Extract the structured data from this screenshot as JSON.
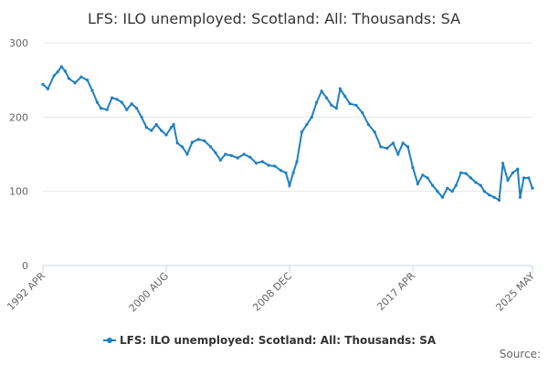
{
  "colors": {
    "series": "#1f7fc1",
    "grid": "#e6e6e6",
    "axis": "#ccd6eb"
  },
  "chart_data": {
    "type": "line",
    "title": "LFS: ILO unemployed: Scotland: All: Thousands: SA",
    "xlabel": "",
    "ylabel": "",
    "ylim": [
      0,
      300
    ],
    "yticks": [
      0,
      100,
      200,
      300
    ],
    "xlim": [
      "1992 APR",
      "2025 MAY"
    ],
    "xticks": [
      "1992 APR",
      "2000 AUG",
      "2008 DEC",
      "2017 APR",
      "2025 MAY"
    ],
    "grid": true,
    "legend": "bottom-center",
    "source_label": "Source:",
    "series": [
      {
        "name": "LFS: ILO unemployed: Scotland: All: Thousands: SA",
        "points": [
          [
            "1992 APR",
            244
          ],
          [
            "1992 AUG",
            238
          ],
          [
            "1993 JAN",
            256
          ],
          [
            "1993 APR",
            261
          ],
          [
            "1993 JUL",
            268
          ],
          [
            "1993 OCT",
            262
          ],
          [
            "1994 JAN",
            252
          ],
          [
            "1994 JUN",
            246
          ],
          [
            "1994 NOV",
            254
          ],
          [
            "1995 APR",
            250
          ],
          [
            "1995 AUG",
            236
          ],
          [
            "1995 DEC",
            220
          ],
          [
            "1996 MAR",
            212
          ],
          [
            "1996 AUG",
            210
          ],
          [
            "1996 DEC",
            226
          ],
          [
            "1997 APR",
            224
          ],
          [
            "1997 AUG",
            220
          ],
          [
            "1997 DEC",
            210
          ],
          [
            "1998 APR",
            218
          ],
          [
            "1998 AUG",
            212
          ],
          [
            "1998 DEC",
            200
          ],
          [
            "1999 APR",
            186
          ],
          [
            "1999 AUG",
            182
          ],
          [
            "1999 DEC",
            190
          ],
          [
            "2000 APR",
            182
          ],
          [
            "2000 AUG",
            176
          ],
          [
            "2000 DEC",
            186
          ],
          [
            "2001 FEB",
            190
          ],
          [
            "2001 MAY",
            165
          ],
          [
            "2001 SEP",
            160
          ],
          [
            "2002 JAN",
            150
          ],
          [
            "2002 MAY",
            166
          ],
          [
            "2002 OCT",
            170
          ],
          [
            "2003 MAR",
            168
          ],
          [
            "2003 AUG",
            160
          ],
          [
            "2003 DEC",
            152
          ],
          [
            "2004 APR",
            142
          ],
          [
            "2004 AUG",
            150
          ],
          [
            "2005 JAN",
            148
          ],
          [
            "2005 JUN",
            145
          ],
          [
            "2005 NOV",
            150
          ],
          [
            "2006 APR",
            146
          ],
          [
            "2006 SEP",
            138
          ],
          [
            "2007 FEB",
            140
          ],
          [
            "2007 JUL",
            135
          ],
          [
            "2007 DEC",
            134
          ],
          [
            "2008 MAY",
            128
          ],
          [
            "2008 SEP",
            125
          ],
          [
            "2008 DEC",
            108
          ],
          [
            "2009 MAR",
            125
          ],
          [
            "2009 JUN",
            140
          ],
          [
            "2009 OCT",
            180
          ],
          [
            "2010 FEB",
            190
          ],
          [
            "2010 JUN",
            200
          ],
          [
            "2010 OCT",
            220
          ],
          [
            "2011 FEB",
            235
          ],
          [
            "2011 JUN",
            226
          ],
          [
            "2011 OCT",
            216
          ],
          [
            "2012 FEB",
            212
          ],
          [
            "2012 MAY",
            238
          ],
          [
            "2012 SEP",
            228
          ],
          [
            "2013 JAN",
            218
          ],
          [
            "2013 JUN",
            216
          ],
          [
            "2013 NOV",
            206
          ],
          [
            "2014 APR",
            190
          ],
          [
            "2014 SEP",
            180
          ],
          [
            "2015 FEB",
            160
          ],
          [
            "2015 JUL",
            158
          ],
          [
            "2015 DEC",
            165
          ],
          [
            "2016 APR",
            150
          ],
          [
            "2016 AUG",
            165
          ],
          [
            "2016 DEC",
            160
          ],
          [
            "2017 APR",
            132
          ],
          [
            "2017 AUG",
            110
          ],
          [
            "2017 DEC",
            122
          ],
          [
            "2018 APR",
            118
          ],
          [
            "2018 AUG",
            108
          ],
          [
            "2018 DEC",
            100
          ],
          [
            "2019 APR",
            92
          ],
          [
            "2019 AUG",
            104
          ],
          [
            "2019 DEC",
            100
          ],
          [
            "2020 MAR",
            108
          ],
          [
            "2020 JUL",
            125
          ],
          [
            "2020 NOV",
            124
          ],
          [
            "2021 MAR",
            118
          ],
          [
            "2021 JUL",
            112
          ],
          [
            "2021 NOV",
            108
          ],
          [
            "2022 FEB",
            100
          ],
          [
            "2022 JUN",
            95
          ],
          [
            "2022 OCT",
            92
          ],
          [
            "2023 FEB",
            88
          ],
          [
            "2023 MAY",
            138
          ],
          [
            "2023 SEP",
            115
          ],
          [
            "2024 JAN",
            125
          ],
          [
            "2024 MAY",
            130
          ],
          [
            "2024 JUL",
            92
          ],
          [
            "2024 OCT",
            118
          ],
          [
            "2025 FEB",
            118
          ],
          [
            "2025 MAY",
            104
          ]
        ]
      }
    ]
  }
}
